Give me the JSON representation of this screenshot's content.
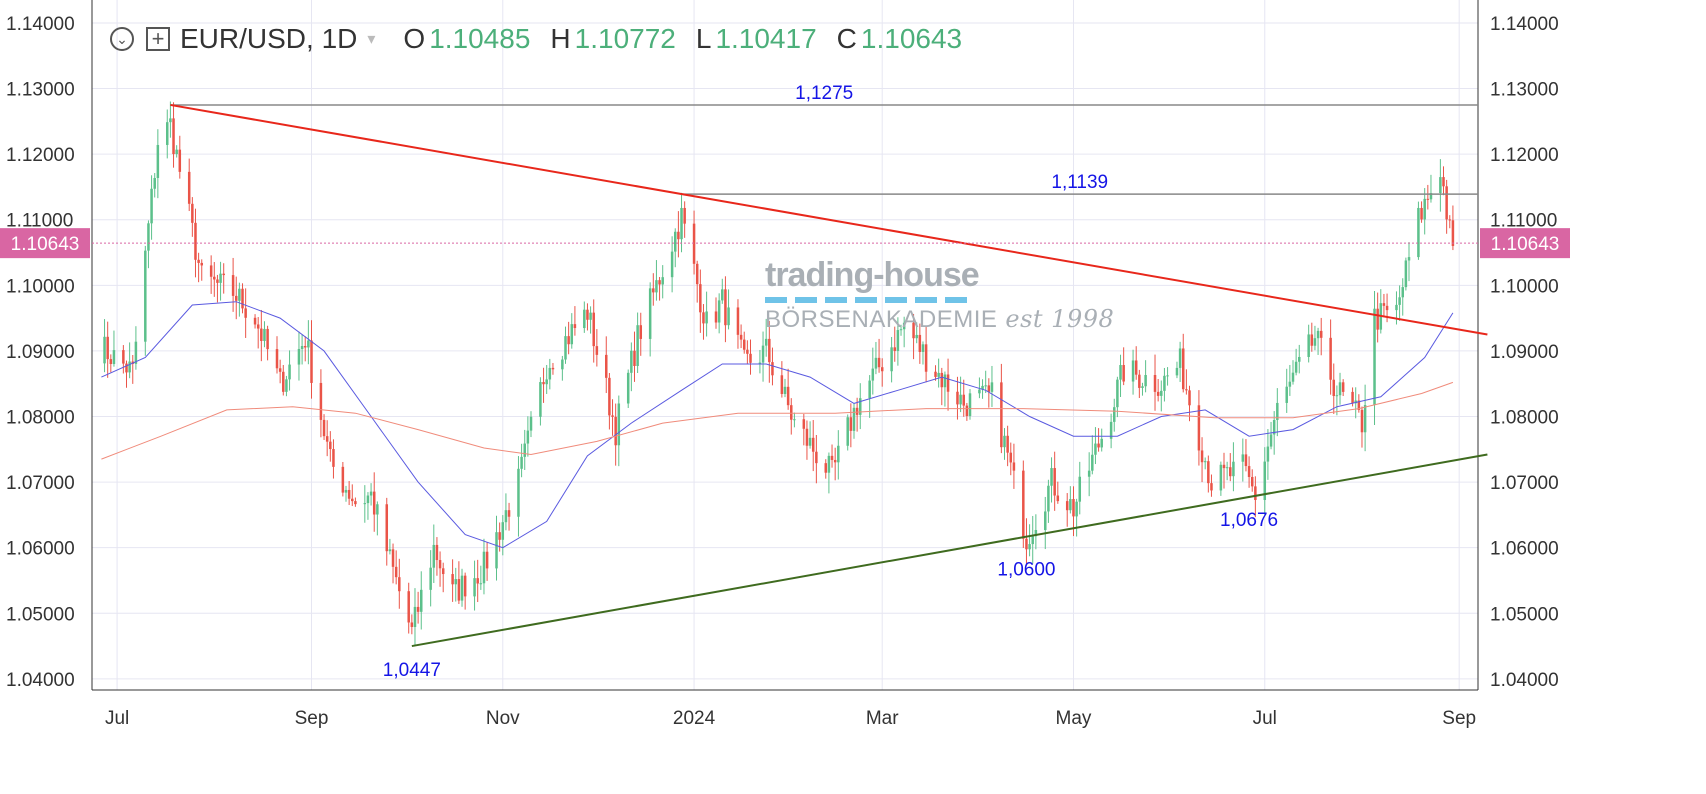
{
  "legend": {
    "symbol": "EUR/USD, 1D",
    "open_label": "O",
    "open_value": "1.10485",
    "high_label": "H",
    "high_value": "1.10772",
    "low_label": "L",
    "low_value": "1.10417",
    "close_label": "C",
    "close_value": "1.10643",
    "menu_icon": "chevron-down-circle-icon",
    "add_icon": "plus-square-icon"
  },
  "watermark": {
    "line1": "trading-house",
    "line2": "BÖRSENAKADEMIE",
    "line3": "est 1998"
  },
  "colors": {
    "up": "#5cc08b",
    "down": "#ea5448",
    "resistance_trend": "#e8271b",
    "support_trend": "#3f6b1f",
    "horizontal_levels": "#888888",
    "level_labels": "#1515e6",
    "ma_short": "#5a5ae0",
    "ma_long": "#f08b7b",
    "price_tag": "#d966a3"
  },
  "chart_data": {
    "type": "candlestick",
    "symbol": "EUR/USD",
    "timeframe": "1D",
    "y_axis": {
      "ticks": [
        "1.04000",
        "1.05000",
        "1.06000",
        "1.07000",
        "1.08000",
        "1.09000",
        "1.10000",
        "1.11000",
        "1.12000",
        "1.13000",
        "1.14000"
      ],
      "ylim": [
        1.0383,
        1.1435
      ],
      "position": "both"
    },
    "x_axis": {
      "ticks": [
        "Jul",
        "Sep",
        "Nov",
        "2024",
        "Mar",
        "May",
        "Jul",
        "Sep"
      ],
      "tick_dates": [
        "2023-07-01",
        "2023-09-01",
        "2023-11-01",
        "2024-01-01",
        "2024-03-01",
        "2024-05-01",
        "2024-07-01",
        "2024-09-01"
      ],
      "xlim": [
        "2023-06-23",
        "2024-09-07"
      ]
    },
    "current_price": "1.10643",
    "anchors": [
      [
        "2023-06-26",
        1.0905
      ],
      [
        "2023-07-06",
        1.0868
      ],
      [
        "2023-07-14",
        1.122
      ],
      [
        "2023-07-18",
        1.1245
      ],
      [
        "2023-07-28",
        1.101
      ],
      [
        "2023-08-07",
        1.099
      ],
      [
        "2023-08-14",
        1.095
      ],
      [
        "2023-08-22",
        1.085
      ],
      [
        "2023-08-30",
        1.092
      ],
      [
        "2023-09-07",
        1.073
      ],
      [
        "2023-09-15",
        1.067
      ],
      [
        "2023-09-20",
        1.068
      ],
      [
        "2023-09-26",
        1.058
      ],
      [
        "2023-10-03",
        1.047
      ],
      [
        "2023-10-10",
        1.06
      ],
      [
        "2023-10-16",
        1.053
      ],
      [
        "2023-10-26",
        1.057
      ],
      [
        "2023-11-06",
        1.07
      ],
      [
        "2023-11-15",
        1.088
      ],
      [
        "2023-11-28",
        1.096
      ],
      [
        "2023-12-07",
        1.078
      ],
      [
        "2023-12-14",
        1.092
      ],
      [
        "2023-12-28",
        1.1105
      ],
      [
        "2024-01-05",
        1.094
      ],
      [
        "2024-01-10",
        1.0975
      ],
      [
        "2024-01-17",
        1.088
      ],
      [
        "2024-01-24",
        1.09
      ],
      [
        "2024-02-02",
        1.079
      ],
      [
        "2024-02-14",
        1.071
      ],
      [
        "2024-02-22",
        1.082
      ],
      [
        "2024-03-08",
        1.094
      ],
      [
        "2024-03-18",
        1.087
      ],
      [
        "2024-03-27",
        1.082
      ],
      [
        "2024-04-05",
        1.083
      ],
      [
        "2024-04-10",
        1.074
      ],
      [
        "2024-04-16",
        1.0615
      ],
      [
        "2024-04-24",
        1.07
      ],
      [
        "2024-05-01",
        1.066
      ],
      [
        "2024-05-10",
        1.077
      ],
      [
        "2024-05-17",
        1.087
      ],
      [
        "2024-05-29",
        1.085
      ],
      [
        "2024-06-04",
        1.088
      ],
      [
        "2024-06-14",
        1.07
      ],
      [
        "2024-06-24",
        1.072
      ],
      [
        "2024-06-28",
        1.068
      ],
      [
        "2024-07-05",
        1.081
      ],
      [
        "2024-07-17",
        1.092
      ],
      [
        "2024-07-24",
        1.084
      ],
      [
        "2024-08-01",
        1.079
      ],
      [
        "2024-08-05",
        1.095
      ],
      [
        "2024-08-12",
        1.096
      ],
      [
        "2024-08-19",
        1.11
      ],
      [
        "2024-08-26",
        1.118
      ],
      [
        "2024-08-29",
        1.108
      ],
      [
        "2024-08-30",
        1.106
      ]
    ],
    "series": [
      {
        "name": "",
        "kind": "moving-average",
        "points": [
          [
            "2023-06-26",
            1.086
          ],
          [
            "2023-07-10",
            1.089
          ],
          [
            "2023-07-25",
            1.097
          ],
          [
            "2023-08-08",
            1.0975
          ],
          [
            "2023-08-22",
            1.095
          ],
          [
            "2023-09-05",
            1.09
          ],
          [
            "2023-09-20",
            1.08
          ],
          [
            "2023-10-05",
            1.07
          ],
          [
            "2023-10-20",
            1.062
          ],
          [
            "2023-11-01",
            1.06
          ],
          [
            "2023-11-15",
            1.064
          ],
          [
            "2023-11-28",
            1.074
          ],
          [
            "2023-12-12",
            1.079
          ],
          [
            "2023-12-28",
            1.084
          ],
          [
            "2024-01-10",
            1.088
          ],
          [
            "2024-01-24",
            1.088
          ],
          [
            "2024-02-07",
            1.086
          ],
          [
            "2024-02-21",
            1.082
          ],
          [
            "2024-03-06",
            1.084
          ],
          [
            "2024-03-20",
            1.086
          ],
          [
            "2024-04-03",
            1.084
          ],
          [
            "2024-04-17",
            1.08
          ],
          [
            "2024-05-01",
            1.077
          ],
          [
            "2024-05-15",
            1.077
          ],
          [
            "2024-05-29",
            1.08
          ],
          [
            "2024-06-12",
            1.081
          ],
          [
            "2024-06-26",
            1.077
          ],
          [
            "2024-07-10",
            1.078
          ],
          [
            "2024-07-24",
            1.0815
          ],
          [
            "2024-08-07",
            1.083
          ],
          [
            "2024-08-21",
            1.089
          ],
          [
            "2024-08-30",
            1.0958
          ]
        ]
      },
      {
        "name": "",
        "kind": "moving-average",
        "points": [
          [
            "2023-06-26",
            1.0735
          ],
          [
            "2023-07-15",
            1.077
          ],
          [
            "2023-08-05",
            1.081
          ],
          [
            "2023-08-26",
            1.0815
          ],
          [
            "2023-09-15",
            1.0805
          ],
          [
            "2023-10-05",
            1.078
          ],
          [
            "2023-10-26",
            1.0752
          ],
          [
            "2023-11-10",
            1.0742
          ],
          [
            "2023-12-01",
            1.0762
          ],
          [
            "2023-12-22",
            1.079
          ],
          [
            "2024-01-15",
            1.0805
          ],
          [
            "2024-02-15",
            1.0805
          ],
          [
            "2024-03-15",
            1.0812
          ],
          [
            "2024-04-15",
            1.0812
          ],
          [
            "2024-05-15",
            1.0808
          ],
          [
            "2024-06-15",
            1.0798
          ],
          [
            "2024-07-10",
            1.0798
          ],
          [
            "2024-07-31",
            1.0812
          ],
          [
            "2024-08-20",
            1.0835
          ],
          [
            "2024-08-30",
            1.0852
          ]
        ]
      }
    ],
    "annotations": {
      "resistance_trendline": {
        "from": [
          "2023-07-18",
          1.1275
        ],
        "to": [
          "2024-09-10",
          1.0925
        ]
      },
      "support_trendline": {
        "from": [
          "2023-10-03",
          1.045
        ],
        "to": [
          "2024-09-10",
          1.0742
        ]
      },
      "horizontal_levels": [
        {
          "label": "1,1275",
          "value": 1.1275,
          "from": "2023-07-18"
        },
        {
          "label": "1,1139",
          "value": 1.1139,
          "from": "2023-12-28"
        }
      ],
      "point_labels": [
        {
          "label": "1,0447",
          "date": "2023-10-03",
          "value": 1.0447,
          "position": "below"
        },
        {
          "label": "1,0600",
          "date": "2024-04-16",
          "value": 1.06,
          "position": "below"
        },
        {
          "label": "1,0676",
          "date": "2024-06-26",
          "value": 1.0676,
          "position": "below"
        }
      ]
    }
  }
}
